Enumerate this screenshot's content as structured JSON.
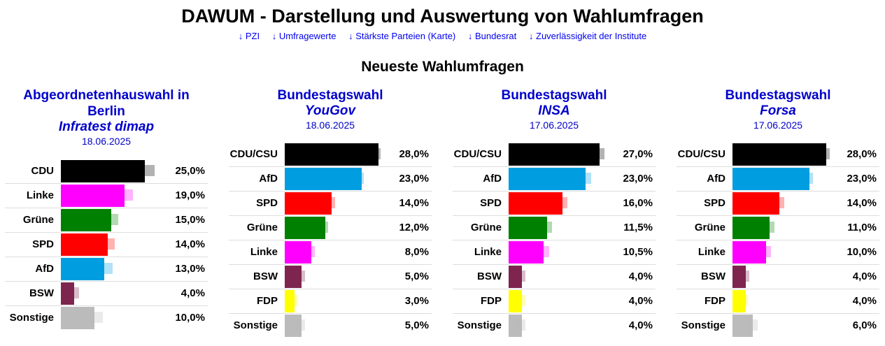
{
  "site": {
    "title": "DAWUM - Darstellung und Auswertung von Wahlumfragen",
    "nav": [
      "↓ PZI",
      "↓ Umfragewerte",
      "↓ Stärkste Parteien (Karte)",
      "↓ Bundesrat",
      "↓ Zuverlässigkeit der Institute"
    ],
    "section_title": "Neueste Wahlumfragen"
  },
  "party_colors": {
    "CDU": "#000000",
    "CDU/CSU": "#000000",
    "AfD": "#009ee0",
    "SPD": "#ff0000",
    "Grüne": "#008000",
    "Linke": "#ff00ff",
    "BSW": "#7d254f",
    "FDP": "#ffff00",
    "Sonstige": "#bbbbbb"
  },
  "chart_data": [
    {
      "type": "bar",
      "orientation": "horizontal",
      "title": "Abgeordnetenhauswahl in Berlin",
      "institute": "Infratest dimap",
      "date": "18.06.2025",
      "categories": [
        "CDU",
        "Linke",
        "Grüne",
        "SPD",
        "AfD",
        "BSW",
        "Sonstige"
      ],
      "values": [
        25.0,
        19.0,
        15.0,
        14.0,
        13.0,
        4.0,
        10.0
      ],
      "labels": [
        "25,0%",
        "19,0%",
        "15,0%",
        "14,0%",
        "13,0%",
        "4,0%",
        "10,0%"
      ],
      "previous": [
        28.0,
        21.5,
        17.0,
        16.0,
        15.5,
        5.5,
        12.5
      ],
      "xlim": [
        0,
        30
      ]
    },
    {
      "type": "bar",
      "orientation": "horizontal",
      "title": "Bundestagswahl",
      "institute": "YouGov",
      "date": "18.06.2025",
      "categories": [
        "CDU/CSU",
        "AfD",
        "SPD",
        "Grüne",
        "Linke",
        "BSW",
        "FDP",
        "Sonstige"
      ],
      "values": [
        28.0,
        23.0,
        14.0,
        12.0,
        8.0,
        5.0,
        3.0,
        5.0
      ],
      "labels": [
        "28,0%",
        "23,0%",
        "14,0%",
        "12,0%",
        "8,0%",
        "5,0%",
        "3,0%",
        "5,0%"
      ],
      "previous": [
        28.5,
        23.5,
        15.0,
        13.0,
        9.0,
        6.0,
        4.0,
        6.0
      ],
      "xlim": [
        0,
        30
      ]
    },
    {
      "type": "bar",
      "orientation": "horizontal",
      "title": "Bundestagswahl",
      "institute": "INSA",
      "date": "17.06.2025",
      "categories": [
        "CDU/CSU",
        "AfD",
        "SPD",
        "Grüne",
        "Linke",
        "BSW",
        "FDP",
        "Sonstige"
      ],
      "values": [
        27.0,
        23.0,
        16.0,
        11.5,
        10.5,
        4.0,
        4.0,
        4.0
      ],
      "labels": [
        "27,0%",
        "23,0%",
        "16,0%",
        "11,5%",
        "10,5%",
        "4,0%",
        "4,0%",
        "4,0%"
      ],
      "previous": [
        28.5,
        24.5,
        17.5,
        13.0,
        12.0,
        5.0,
        5.0,
        5.0
      ],
      "xlim": [
        0,
        30
      ]
    },
    {
      "type": "bar",
      "orientation": "horizontal",
      "title": "Bundestagswahl",
      "institute": "Forsa",
      "date": "17.06.2025",
      "categories": [
        "CDU/CSU",
        "AfD",
        "SPD",
        "Grüne",
        "Linke",
        "BSW",
        "FDP",
        "Sonstige"
      ],
      "values": [
        28.0,
        23.0,
        14.0,
        11.0,
        10.0,
        4.0,
        4.0,
        6.0
      ],
      "labels": [
        "28,0%",
        "23,0%",
        "14,0%",
        "11,0%",
        "10,0%",
        "4,0%",
        "4,0%",
        "6,0%"
      ],
      "previous": [
        29.0,
        24.0,
        15.5,
        12.5,
        11.5,
        5.0,
        4.5,
        7.5
      ],
      "xlim": [
        0,
        30
      ]
    }
  ]
}
